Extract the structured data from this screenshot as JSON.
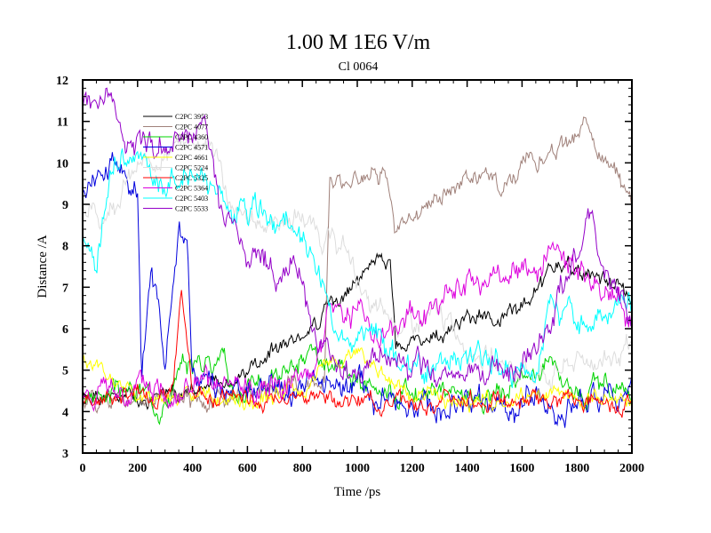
{
  "chart_data": {
    "type": "line",
    "title": "1.00 M 1E6 V/m",
    "subtitle": "Cl 0064",
    "xlabel": "Time /ps",
    "ylabel": "Distance /A",
    "xlim": [
      0,
      2000
    ],
    "ylim": [
      3,
      12
    ],
    "xticks": [
      "0",
      "200",
      "400",
      "600",
      "800",
      "1000",
      "1200",
      "1400",
      "1600",
      "1800",
      "2000"
    ],
    "yticks": [
      "3",
      "4",
      "5",
      "6",
      "7",
      "8",
      "9",
      "10",
      "11",
      "12"
    ],
    "grid": false,
    "legend_position": "top-left",
    "series": [
      {
        "name": "C2PC 3953",
        "color": "#000000",
        "anchors": [
          [
            0,
            4.3
          ],
          [
            150,
            4.2
          ],
          [
            300,
            4.4
          ],
          [
            400,
            4.5
          ],
          [
            550,
            4.8
          ],
          [
            640,
            5.1
          ],
          [
            700,
            5.6
          ],
          [
            800,
            5.9
          ],
          [
            850,
            6.0
          ],
          [
            900,
            6.5
          ],
          [
            1000,
            7.0
          ],
          [
            1050,
            7.5
          ],
          [
            1120,
            7.6
          ],
          [
            1140,
            5.5
          ],
          [
            1200,
            5.6
          ],
          [
            1300,
            5.8
          ],
          [
            1400,
            6.2
          ],
          [
            1500,
            6.3
          ],
          [
            1600,
            6.5
          ],
          [
            1700,
            7.3
          ],
          [
            1800,
            7.4
          ],
          [
            1900,
            7.2
          ],
          [
            2000,
            6.8
          ]
        ],
        "noise": 0.18
      },
      {
        "name": "C2PC 4077",
        "color": "#a0817a",
        "anchors": [
          [
            0,
            4.3
          ],
          [
            200,
            4.4
          ],
          [
            400,
            4.2
          ],
          [
            600,
            4.4
          ],
          [
            800,
            4.6
          ],
          [
            880,
            5.0
          ],
          [
            900,
            9.6
          ],
          [
            950,
            9.5
          ],
          [
            1050,
            9.8
          ],
          [
            1100,
            10.0
          ],
          [
            1140,
            8.2
          ],
          [
            1200,
            8.7
          ],
          [
            1300,
            9.3
          ],
          [
            1400,
            9.7
          ],
          [
            1500,
            9.6
          ],
          [
            1600,
            9.9
          ],
          [
            1700,
            10.2
          ],
          [
            1800,
            10.6
          ],
          [
            1850,
            11.0
          ],
          [
            1900,
            10.1
          ],
          [
            2000,
            9.2
          ]
        ],
        "noise": 0.22
      },
      {
        "name": "C2PC 4360",
        "color": "#00d400",
        "anchors": [
          [
            0,
            4.4
          ],
          [
            200,
            4.5
          ],
          [
            300,
            4.3
          ],
          [
            400,
            5.2
          ],
          [
            500,
            5.4
          ],
          [
            550,
            4.5
          ],
          [
            700,
            4.8
          ],
          [
            800,
            5.3
          ],
          [
            900,
            4.9
          ],
          [
            1000,
            4.7
          ],
          [
            1200,
            4.5
          ],
          [
            1400,
            4.4
          ],
          [
            1600,
            4.6
          ],
          [
            1700,
            5.4
          ],
          [
            1800,
            4.6
          ],
          [
            2000,
            4.5
          ]
        ],
        "noise": 0.25
      },
      {
        "name": "C2PC 4571",
        "color": "#0000dd",
        "anchors": [
          [
            0,
            9.4
          ],
          [
            50,
            9.6
          ],
          [
            100,
            10.2
          ],
          [
            150,
            9.8
          ],
          [
            200,
            9.5
          ],
          [
            215,
            4.6
          ],
          [
            250,
            7.8
          ],
          [
            300,
            5.2
          ],
          [
            350,
            8.5
          ],
          [
            380,
            7.9
          ],
          [
            400,
            4.8
          ],
          [
            500,
            4.4
          ],
          [
            700,
            4.5
          ],
          [
            900,
            4.6
          ],
          [
            1000,
            4.4
          ],
          [
            1200,
            4.1
          ],
          [
            1400,
            4.3
          ],
          [
            1600,
            4.2
          ],
          [
            1800,
            4.2
          ],
          [
            2000,
            4.4
          ]
        ],
        "noise": 0.3
      },
      {
        "name": "C2PC 4661",
        "color": "#ffff00",
        "anchors": [
          [
            0,
            5.2
          ],
          [
            80,
            4.8
          ],
          [
            200,
            4.4
          ],
          [
            400,
            4.3
          ],
          [
            600,
            4.2
          ],
          [
            800,
            4.5
          ],
          [
            900,
            5.2
          ],
          [
            1000,
            5.4
          ],
          [
            1100,
            5.0
          ],
          [
            1200,
            4.4
          ],
          [
            1400,
            4.2
          ],
          [
            1600,
            4.4
          ],
          [
            1800,
            4.3
          ],
          [
            2000,
            4.2
          ]
        ],
        "noise": 0.18
      },
      {
        "name": "C2PC 5224",
        "color": "#dddddd",
        "anchors": [
          [
            0,
            9.0
          ],
          [
            60,
            8.6
          ],
          [
            150,
            9.5
          ],
          [
            300,
            10.3
          ],
          [
            450,
            10.6
          ],
          [
            500,
            10.0
          ],
          [
            550,
            8.6
          ],
          [
            700,
            8.6
          ],
          [
            800,
            8.7
          ],
          [
            900,
            8.1
          ],
          [
            960,
            7.9
          ],
          [
            1050,
            6.4
          ],
          [
            1200,
            6.0
          ],
          [
            1300,
            6.3
          ],
          [
            1450,
            5.4
          ],
          [
            1600,
            5.0
          ],
          [
            1700,
            4.9
          ],
          [
            1800,
            5.2
          ],
          [
            1900,
            5.3
          ],
          [
            2000,
            5.4
          ]
        ],
        "noise": 0.25
      },
      {
        "name": "C2PC 5325",
        "color": "#ff0000",
        "anchors": [
          [
            0,
            4.3
          ],
          [
            200,
            4.4
          ],
          [
            330,
            4.5
          ],
          [
            360,
            6.7
          ],
          [
            400,
            4.5
          ],
          [
            600,
            4.3
          ],
          [
            800,
            4.4
          ],
          [
            1000,
            4.3
          ],
          [
            1200,
            4.2
          ],
          [
            1400,
            4.3
          ],
          [
            1600,
            4.2
          ],
          [
            1800,
            4.3
          ],
          [
            2000,
            4.2
          ]
        ],
        "noise": 0.18
      },
      {
        "name": "C2PC 5364",
        "color": "#dd00dd",
        "anchors": [
          [
            0,
            4.4
          ],
          [
            200,
            4.5
          ],
          [
            400,
            4.6
          ],
          [
            500,
            4.4
          ],
          [
            700,
            4.7
          ],
          [
            850,
            5.2
          ],
          [
            900,
            6.6
          ],
          [
            1000,
            6.4
          ],
          [
            1100,
            5.8
          ],
          [
            1200,
            6.3
          ],
          [
            1300,
            6.6
          ],
          [
            1400,
            7.0
          ],
          [
            1500,
            7.1
          ],
          [
            1600,
            7.4
          ],
          [
            1700,
            7.6
          ],
          [
            1800,
            7.4
          ],
          [
            1900,
            7.0
          ],
          [
            2000,
            6.5
          ]
        ],
        "noise": 0.3
      },
      {
        "name": "C2PC 5403",
        "color": "#00ffff",
        "anchors": [
          [
            0,
            8.3
          ],
          [
            50,
            7.2
          ],
          [
            100,
            9.8
          ],
          [
            150,
            10.3
          ],
          [
            200,
            10.0
          ],
          [
            300,
            9.5
          ],
          [
            450,
            9.7
          ],
          [
            550,
            8.8
          ],
          [
            700,
            8.6
          ],
          [
            800,
            8.0
          ],
          [
            850,
            7.5
          ],
          [
            900,
            6.3
          ],
          [
            950,
            5.4
          ],
          [
            1050,
            6.1
          ],
          [
            1150,
            5.2
          ],
          [
            1300,
            5.1
          ],
          [
            1450,
            5.3
          ],
          [
            1550,
            5.0
          ],
          [
            1650,
            4.9
          ],
          [
            1700,
            6.5
          ],
          [
            1800,
            6.3
          ],
          [
            1900,
            6.4
          ],
          [
            2000,
            6.6
          ]
        ],
        "noise": 0.3
      },
      {
        "name": "C2PC 5533",
        "color": "#9400c8",
        "anchors": [
          [
            0,
            11.5
          ],
          [
            100,
            11.6
          ],
          [
            150,
            10.6
          ],
          [
            300,
            10.4
          ],
          [
            400,
            10.8
          ],
          [
            450,
            10.9
          ],
          [
            500,
            8.8
          ],
          [
            600,
            7.9
          ],
          [
            700,
            7.5
          ],
          [
            800,
            7.4
          ],
          [
            850,
            5.5
          ],
          [
            900,
            5.2
          ],
          [
            1000,
            4.9
          ],
          [
            1100,
            5.2
          ],
          [
            1200,
            4.9
          ],
          [
            1300,
            4.8
          ],
          [
            1400,
            5.0
          ],
          [
            1600,
            5.1
          ],
          [
            1700,
            6.3
          ],
          [
            1800,
            7.8
          ],
          [
            1850,
            9.0
          ],
          [
            1900,
            7.1
          ],
          [
            2000,
            6.2
          ]
        ],
        "noise": 0.3
      }
    ]
  }
}
